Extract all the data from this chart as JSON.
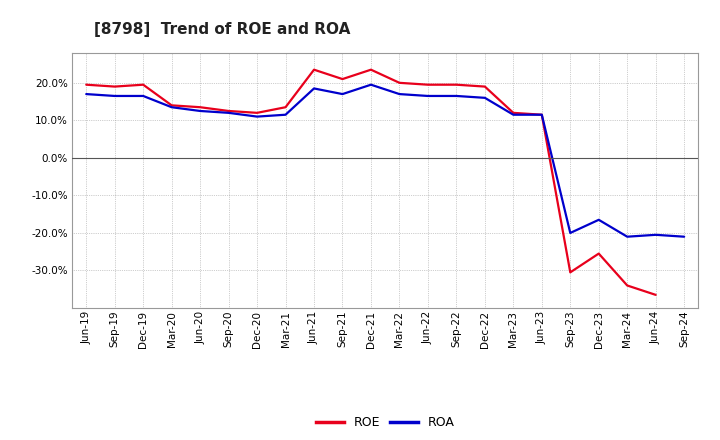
{
  "title": "[8798]  Trend of ROE and ROA",
  "labels": [
    "Jun-19",
    "Sep-19",
    "Dec-19",
    "Mar-20",
    "Jun-20",
    "Sep-20",
    "Dec-20",
    "Mar-21",
    "Jun-21",
    "Sep-21",
    "Dec-21",
    "Mar-22",
    "Jun-22",
    "Sep-22",
    "Dec-22",
    "Mar-23",
    "Jun-23",
    "Sep-23",
    "Dec-23",
    "Mar-24",
    "Jun-24",
    "Sep-24"
  ],
  "ROE": [
    19.5,
    19.0,
    19.5,
    14.0,
    13.5,
    12.5,
    12.0,
    13.5,
    23.5,
    21.0,
    23.5,
    20.0,
    19.5,
    19.5,
    19.0,
    12.0,
    11.5,
    -30.5,
    -25.5,
    -34.0,
    -36.5,
    null
  ],
  "ROA": [
    17.0,
    16.5,
    16.5,
    13.5,
    12.5,
    12.0,
    11.0,
    11.5,
    18.5,
    17.0,
    19.5,
    17.0,
    16.5,
    16.5,
    16.0,
    11.5,
    11.5,
    -20.0,
    -16.5,
    -21.0,
    -20.5,
    -21.0
  ],
  "ROE_color": "#e8001c",
  "ROA_color": "#0000cc",
  "background_color": "#ffffff",
  "plot_bg_color": "#ffffff",
  "grid_color": "#888888",
  "ylim": [
    -40,
    28
  ],
  "yticks": [
    -30,
    -20,
    -10,
    0,
    10,
    20
  ],
  "title_fontsize": 11,
  "legend_fontsize": 9,
  "tick_fontsize": 7.5,
  "linewidth": 1.6
}
